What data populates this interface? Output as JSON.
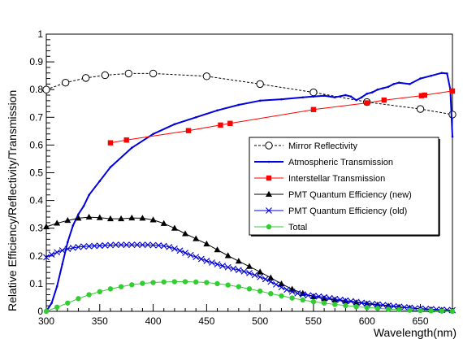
{
  "chart_data": {
    "type": "line",
    "title": "",
    "xlabel": "Wavelength(nm)",
    "ylabel": "Relative Efficiency/Reflectivity/Transmission",
    "xlim": [
      300,
      680
    ],
    "ylim": [
      0,
      1
    ],
    "x_ticks": [
      300,
      350,
      400,
      450,
      500,
      550,
      600,
      650
    ],
    "x_tick_labels": [
      "300",
      "350",
      "400",
      "450",
      "500",
      "550",
      "600",
      "650"
    ],
    "y_ticks": [
      0,
      0.1,
      0.2,
      0.3,
      0.4,
      0.5,
      0.6,
      0.7,
      0.8,
      0.9,
      1
    ],
    "y_tick_labels": [
      "0",
      "0.1",
      "0.2",
      "0.3",
      "0.4",
      "0.5",
      "0.6",
      "0.7",
      "0.8",
      "0.9",
      "1"
    ],
    "grid": false,
    "legend_position": "middle-right",
    "series": [
      {
        "name": "Mirror Reflectivity",
        "color": "#000000",
        "line_style": "dashed",
        "marker": "open-circle",
        "x": [
          300,
          318,
          337,
          355,
          377,
          400,
          450,
          500,
          550,
          600,
          650,
          680
        ],
        "y": [
          0.8,
          0.825,
          0.842,
          0.852,
          0.858,
          0.858,
          0.848,
          0.82,
          0.79,
          0.755,
          0.73,
          0.71
        ]
      },
      {
        "name": "Atmospheric Transmission",
        "color": "#0000dd",
        "line_style": "solid",
        "marker": "small-dot",
        "x": [
          300,
          305,
          310,
          315,
          320,
          325,
          330,
          335,
          340,
          350,
          360,
          380,
          400,
          420,
          440,
          460,
          480,
          500,
          520,
          540,
          550,
          560,
          570,
          580,
          585,
          590,
          595,
          600,
          605,
          610,
          615,
          620,
          625,
          630,
          640,
          650,
          660,
          670,
          675,
          678,
          680
        ],
        "y": [
          0.0,
          0.03,
          0.09,
          0.17,
          0.25,
          0.31,
          0.35,
          0.38,
          0.42,
          0.47,
          0.52,
          0.59,
          0.64,
          0.675,
          0.7,
          0.725,
          0.745,
          0.76,
          0.765,
          0.772,
          0.775,
          0.778,
          0.772,
          0.78,
          0.775,
          0.762,
          0.772,
          0.785,
          0.79,
          0.8,
          0.805,
          0.81,
          0.82,
          0.825,
          0.82,
          0.84,
          0.85,
          0.86,
          0.858,
          0.8,
          0.63
        ]
      },
      {
        "name": "Interstellar Transmission",
        "color": "#ff0000",
        "line_style": "solid",
        "marker": "filled-square",
        "x": [
          360,
          375,
          433,
          463,
          472,
          550,
          600,
          616,
          651,
          654,
          680
        ],
        "y": [
          0.608,
          0.618,
          0.652,
          0.672,
          0.678,
          0.728,
          0.752,
          0.762,
          0.778,
          0.78,
          0.795
        ]
      },
      {
        "name": "PMT Quantum Efficiency (new)",
        "color": "#000000",
        "line_style": "solid",
        "marker": "filled-triangle",
        "x": [
          300,
          310,
          320,
          330,
          340,
          350,
          360,
          370,
          380,
          390,
          400,
          410,
          420,
          430,
          440,
          450,
          460,
          470,
          480,
          490,
          500,
          510,
          520,
          530,
          540,
          550,
          560,
          570,
          580,
          590,
          600,
          610,
          620,
          630,
          640,
          650,
          660,
          670,
          680
        ],
        "y": [
          0.305,
          0.318,
          0.328,
          0.336,
          0.34,
          0.338,
          0.334,
          0.334,
          0.337,
          0.336,
          0.33,
          0.317,
          0.3,
          0.28,
          0.262,
          0.243,
          0.222,
          0.201,
          0.181,
          0.162,
          0.142,
          0.121,
          0.099,
          0.08,
          0.065,
          0.053,
          0.046,
          0.041,
          0.036,
          0.031,
          0.027,
          0.023,
          0.019,
          0.015,
          0.012,
          0.009,
          0.006,
          0.004,
          0.003
        ]
      },
      {
        "name": "PMT Quantum Efficiency (old)",
        "color": "#0000dd",
        "line_style": "solid",
        "marker": "x-cross",
        "x": [
          300,
          305,
          310,
          315,
          320,
          325,
          330,
          335,
          340,
          345,
          350,
          355,
          360,
          365,
          370,
          375,
          380,
          385,
          390,
          395,
          400,
          405,
          410,
          415,
          420,
          425,
          430,
          435,
          440,
          445,
          450,
          455,
          460,
          465,
          470,
          475,
          480,
          485,
          490,
          495,
          500,
          505,
          510,
          515,
          520,
          525,
          530,
          535,
          540,
          545,
          550,
          555,
          560,
          565,
          570,
          575,
          580,
          585,
          590,
          595,
          600,
          605,
          610,
          615,
          620,
          625,
          630,
          635,
          640,
          645,
          650,
          655,
          660,
          665,
          670,
          675,
          680
        ],
        "y": [
          0.195,
          0.205,
          0.213,
          0.22,
          0.225,
          0.229,
          0.232,
          0.234,
          0.235,
          0.236,
          0.237,
          0.238,
          0.239,
          0.24,
          0.24,
          0.24,
          0.24,
          0.24,
          0.24,
          0.24,
          0.239,
          0.238,
          0.236,
          0.232,
          0.226,
          0.219,
          0.211,
          0.203,
          0.196,
          0.189,
          0.182,
          0.176,
          0.17,
          0.164,
          0.159,
          0.154,
          0.149,
          0.144,
          0.138,
          0.131,
          0.124,
          0.116,
          0.107,
          0.097,
          0.087,
          0.078,
          0.071,
          0.065,
          0.061,
          0.058,
          0.056,
          0.054,
          0.051,
          0.048,
          0.045,
          0.042,
          0.039,
          0.037,
          0.034,
          0.031,
          0.029,
          0.027,
          0.025,
          0.023,
          0.021,
          0.019,
          0.017,
          0.015,
          0.013,
          0.011,
          0.01,
          0.009,
          0.008,
          0.007,
          0.006,
          0.005,
          0.004
        ]
      },
      {
        "name": "Total",
        "color": "#33cc33",
        "line_style": "solid",
        "marker": "filled-circle",
        "x": [
          300,
          310,
          320,
          330,
          340,
          350,
          360,
          370,
          380,
          390,
          400,
          410,
          420,
          430,
          440,
          450,
          460,
          470,
          480,
          490,
          500,
          510,
          520,
          530,
          540,
          550,
          560,
          570,
          580,
          590,
          600,
          610,
          620,
          630,
          640,
          650,
          660,
          670,
          680
        ],
        "y": [
          0.0,
          0.015,
          0.03,
          0.046,
          0.06,
          0.071,
          0.081,
          0.089,
          0.096,
          0.101,
          0.104,
          0.106,
          0.107,
          0.107,
          0.106,
          0.104,
          0.1,
          0.095,
          0.089,
          0.081,
          0.073,
          0.064,
          0.056,
          0.048,
          0.041,
          0.035,
          0.03,
          0.025,
          0.021,
          0.017,
          0.014,
          0.011,
          0.008,
          0.006,
          0.004,
          0.003,
          0.002,
          0.001,
          0.0
        ]
      }
    ]
  }
}
